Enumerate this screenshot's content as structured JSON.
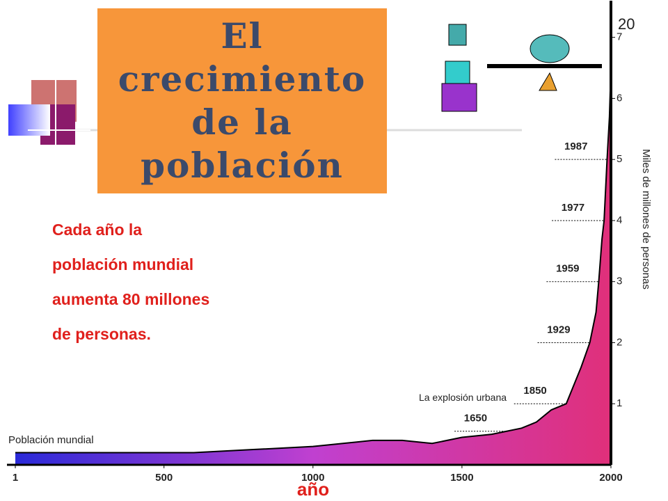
{
  "slide": {
    "title": "El crecimiento de la población",
    "page_number": "20",
    "body_lines": [
      "Cada año la",
      "población mundial",
      "aumenta 80 millones",
      "de personas."
    ]
  },
  "chart_data": {
    "type": "area",
    "x": [
      1,
      200,
      400,
      500,
      600,
      800,
      1000,
      1200,
      1300,
      1400,
      1500,
      1600,
      1650,
      1700,
      1750,
      1800,
      1850,
      1900,
      1929,
      1950,
      1959,
      1970,
      1977,
      1987,
      1995,
      2000
    ],
    "series": [
      {
        "name": "Población mundial",
        "color": "#e0307a",
        "values": [
          0.2,
          0.2,
          0.2,
          0.2,
          0.2,
          0.25,
          0.3,
          0.4,
          0.4,
          0.35,
          0.45,
          0.5,
          0.55,
          0.6,
          0.7,
          0.9,
          1.0,
          1.6,
          2.0,
          2.5,
          3.0,
          3.7,
          4.0,
          5.0,
          5.7,
          6.5
        ]
      }
    ],
    "year_labels": [
      "1650",
      "1850",
      "1929",
      "1959",
      "1977",
      "1987"
    ],
    "annotation": "La explosión urbana",
    "xlabel": "año",
    "ylabel": "Miles de millones de personas",
    "xlim": [
      1,
      2000
    ],
    "xticks": [
      1,
      500,
      1000,
      1500,
      2000
    ],
    "ylim": [
      0,
      7.6
    ],
    "yticks": [
      1,
      2,
      3,
      4,
      5,
      6,
      7
    ]
  }
}
